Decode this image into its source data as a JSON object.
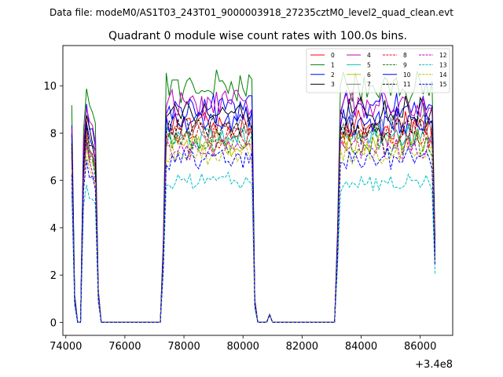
{
  "suptitle": "Data file: modeM0/AS1T03_243T01_9000003918_27235cztM0_level2_quad_clean.evt",
  "chart_data": {
    "type": "line",
    "title": "Quadrant 0 module wise count rates with 100.0s bins.",
    "xlabel": "",
    "ylabel": "",
    "x_offset_label": "+3.4e8",
    "xlim": [
      73900,
      87100
    ],
    "ylim": [
      -0.55,
      11.7
    ],
    "xticks": [
      74000,
      76000,
      78000,
      80000,
      82000,
      84000,
      86000
    ],
    "xtick_labels": [
      "74000",
      "76000",
      "78000",
      "80000",
      "82000",
      "84000",
      "86000"
    ],
    "yticks": [
      0,
      2,
      4,
      6,
      8,
      10
    ],
    "ytick_labels": [
      "0",
      "2",
      "4",
      "6",
      "8",
      "10"
    ],
    "bin_width_s": 100,
    "segments": [
      {
        "start": 74200,
        "end": 75200,
        "rate_factors": [
          0.92,
          0.12,
          0.0,
          0.0,
          0.82,
          1.0,
          0.9,
          0.88,
          0.82,
          0.14,
          0.0
        ]
      },
      {
        "start": 75300,
        "end": 77200,
        "level": 0
      },
      {
        "start": 77200,
        "end": 80400,
        "edge_factors": [
          0.35,
          1.0
        ],
        "tail_factor": 0.1
      },
      {
        "start": 80400,
        "end": 83100,
        "level": 0,
        "blip_x": 80900,
        "blip_value": 0.33
      },
      {
        "start": 83100,
        "end": 86500,
        "edge_factors": [
          0.4,
          1.0
        ],
        "tail_factor": 0.35
      }
    ],
    "series": [
      {
        "name": "0",
        "color": "#ff0000",
        "dash": "solid",
        "level": 8.3
      },
      {
        "name": "1",
        "color": "#008000",
        "dash": "solid",
        "level": 10.0
      },
      {
        "name": "2",
        "color": "#0000ff",
        "dash": "solid",
        "level": 9.1
      },
      {
        "name": "3",
        "color": "#000000",
        "dash": "solid",
        "level": 8.9
      },
      {
        "name": "4",
        "color": "#bf00bf",
        "dash": "solid",
        "level": 9.2
      },
      {
        "name": "5",
        "color": "#00bfbf",
        "dash": "solid",
        "level": 7.9
      },
      {
        "name": "6",
        "color": "#bfbf00",
        "dash": "solid",
        "level": 7.6
      },
      {
        "name": "7",
        "color": "#7f7f7f",
        "dash": "solid",
        "level": 8.1
      },
      {
        "name": "8",
        "color": "#ff0000",
        "dash": "dashed",
        "level": 7.9
      },
      {
        "name": "9",
        "color": "#008000",
        "dash": "dashed",
        "level": 7.6
      },
      {
        "name": "10",
        "color": "#0000ff",
        "dash": "solid",
        "level": 8.5
      },
      {
        "name": "11",
        "color": "#000000",
        "dash": "dashed",
        "level": 8.2
      },
      {
        "name": "12",
        "color": "#bf00bf",
        "dash": "dashed",
        "level": 7.4
      },
      {
        "name": "13",
        "color": "#00bfbf",
        "dash": "dashed",
        "level": 5.9
      },
      {
        "name": "14",
        "color": "#bfbf00",
        "dash": "dashed",
        "level": 7.1
      },
      {
        "name": "15",
        "color": "#0000ff",
        "dash": "dashed",
        "level": 6.9
      }
    ],
    "legend": {
      "location": "upper right",
      "ncol": 4
    }
  }
}
